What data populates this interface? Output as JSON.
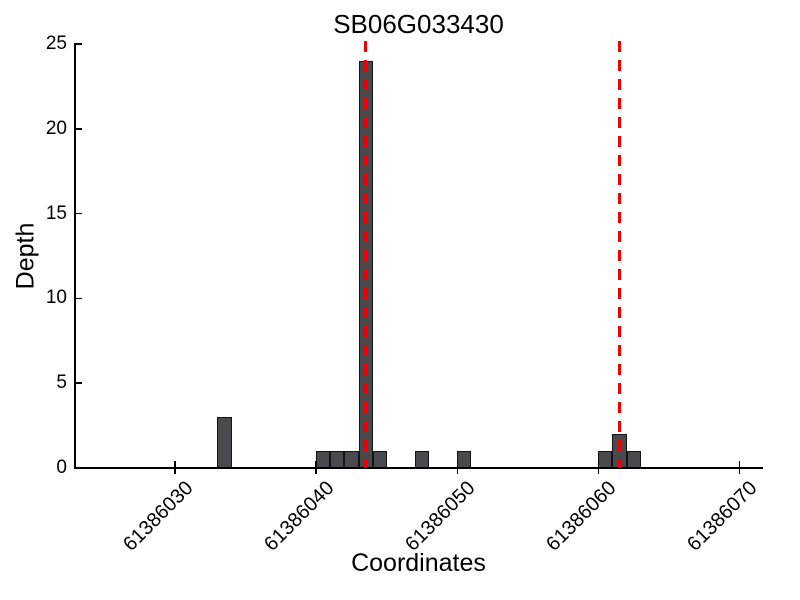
{
  "chart_data": {
    "type": "bar",
    "title": "SB06G033430",
    "xlabel": "Coordinates",
    "ylabel": "Depth",
    "xlim": [
      61386022.9,
      61386071.6
    ],
    "ylim": [
      0,
      25
    ],
    "xticks": [
      61386030,
      61386040,
      61386050,
      61386060,
      61386070
    ],
    "xtick_labels": [
      "61386030",
      "61386040",
      "61386050",
      "61386060",
      "61386070"
    ],
    "yticks": [
      0,
      5,
      10,
      15,
      20,
      25
    ],
    "ytick_labels": [
      "0",
      "5",
      "10",
      "15",
      "20",
      "25"
    ],
    "bar_width": 1,
    "bars": [
      {
        "coordinate": 61386033,
        "depth": 3
      },
      {
        "coordinate": 61386040,
        "depth": 1
      },
      {
        "coordinate": 61386041,
        "depth": 1
      },
      {
        "coordinate": 61386042,
        "depth": 1
      },
      {
        "coordinate": 61386043,
        "depth": 24
      },
      {
        "coordinate": 61386044,
        "depth": 1
      },
      {
        "coordinate": 61386047,
        "depth": 1
      },
      {
        "coordinate": 61386050,
        "depth": 1
      },
      {
        "coordinate": 61386060,
        "depth": 1
      },
      {
        "coordinate": 61386061,
        "depth": 2
      },
      {
        "coordinate": 61386062,
        "depth": 1
      }
    ],
    "vlines": [
      {
        "x": 61386043.5,
        "style": "dashed"
      },
      {
        "x": 61386061.5,
        "style": "dashed"
      }
    ],
    "grid": false,
    "legend": false,
    "colors": {
      "bar_fill": "#4a4a4e",
      "bar_edge": "#141414",
      "vline": "#ee0000",
      "axis": "#000000",
      "text": "#000000",
      "background": "#ffffff"
    }
  }
}
